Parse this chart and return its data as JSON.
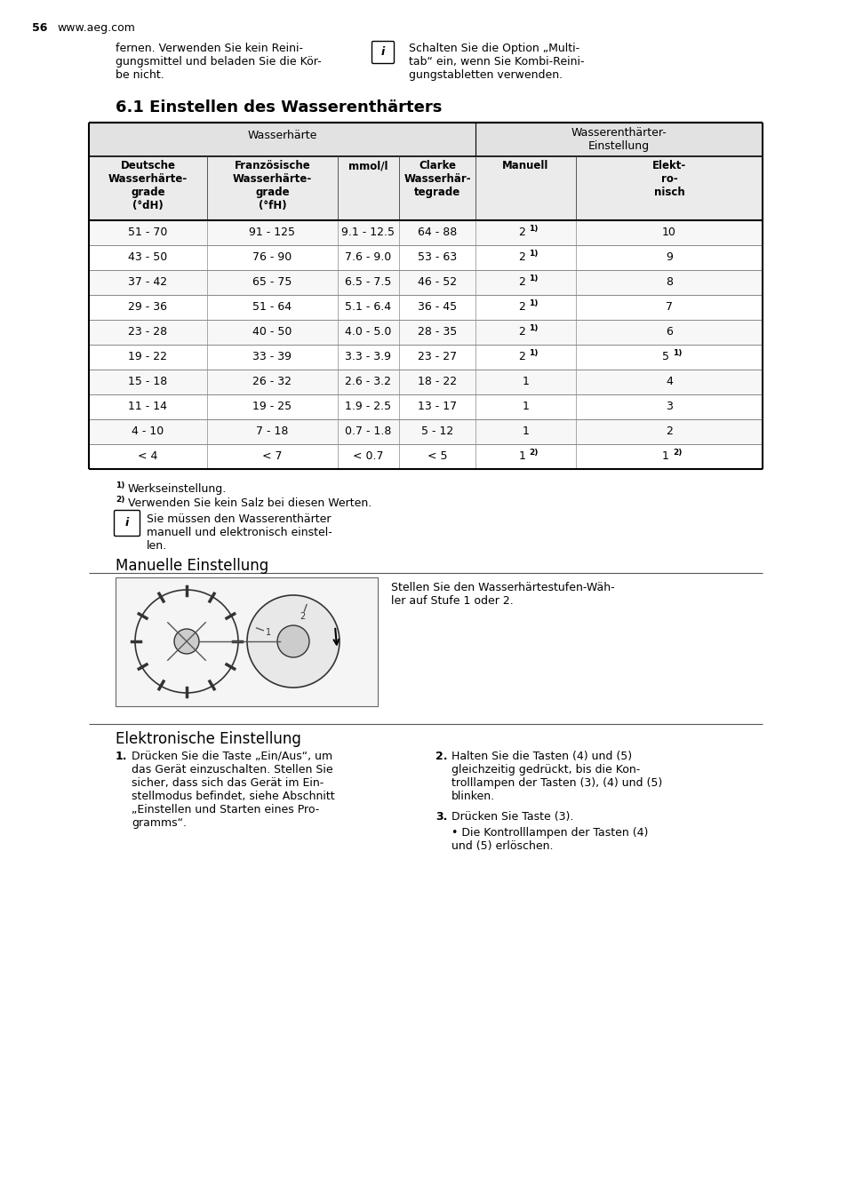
{
  "page_num": "56",
  "website": "www.aeg.com",
  "intro_left": "fernen. Verwenden Sie kein Reini-\ngungsmittel und beladen Sie die Kör-\nbe nicht.",
  "intro_right": "Schalten Sie die Option „Multi-\ntab“ ein, wenn Sie Kombi-Reini-\ngungstabletten verwenden.",
  "section_title": "6.1 Einstellen des Wasserenthärters",
  "table_rows": [
    [
      "51 - 70",
      "91 - 125",
      "9.1 - 12.5",
      "64 - 88",
      "2 1)",
      "10"
    ],
    [
      "43 - 50",
      "76 - 90",
      "7.6 - 9.0",
      "53 - 63",
      "2 1)",
      "9"
    ],
    [
      "37 - 42",
      "65 - 75",
      "6.5 - 7.5",
      "46 - 52",
      "2 1)",
      "8"
    ],
    [
      "29 - 36",
      "51 - 64",
      "5.1 - 6.4",
      "36 - 45",
      "2 1)",
      "7"
    ],
    [
      "23 - 28",
      "40 - 50",
      "4.0 - 5.0",
      "28 - 35",
      "2 1)",
      "6"
    ],
    [
      "19 - 22",
      "33 - 39",
      "3.3 - 3.9",
      "23 - 27",
      "2 1)",
      "5 1)"
    ],
    [
      "15 - 18",
      "26 - 32",
      "2.6 - 3.2",
      "18 - 22",
      "1",
      "4"
    ],
    [
      "11 - 14",
      "19 - 25",
      "1.9 - 2.5",
      "13 - 17",
      "1",
      "3"
    ],
    [
      "4 - 10",
      "7 - 18",
      "0.7 - 1.8",
      "5 - 12",
      "1",
      "2"
    ],
    [
      "< 4",
      "< 7",
      "< 0.7",
      "< 5",
      "1 2)",
      "1 2)"
    ]
  ],
  "footnote1": "Werkseinstellung.",
  "footnote2": "Verwenden Sie kein Salz bei diesen Werten.",
  "info_box_text": "Sie müssen den Wasserenthärter\nmanuell und elektronisch einstel-\nlen.",
  "manual_title": "Manuelle Einstellung",
  "manual_text": "Stellen Sie den Wasserhärtestufen-Wäh-\nler auf Stufe 1 oder 2.",
  "elec_title": "Elektronische Einstellung",
  "elec_step1": "Drücken Sie die Taste „Ein/Aus“, um\ndas Gerät einzuschalten. Stellen Sie\nsicher, dass sich das Gerät im Ein-\nstellmodus befindet, siehe Abschnitt\n„Einstellen und Starten eines Pro-\ngramms“.",
  "elec_step2": "Halten Sie die Tasten (4) und (5)\ngleichzeitig gedrückt, bis die Kon-\ntrolllampen der Tasten (3), (4) und (5)\nblinken.",
  "elec_step3": "Drücken Sie Taste (3).",
  "elec_step3_bullet": "Die Kontrolllampen der Tasten (4)\nund (5) erlöschen.",
  "bg_color": "#ffffff"
}
